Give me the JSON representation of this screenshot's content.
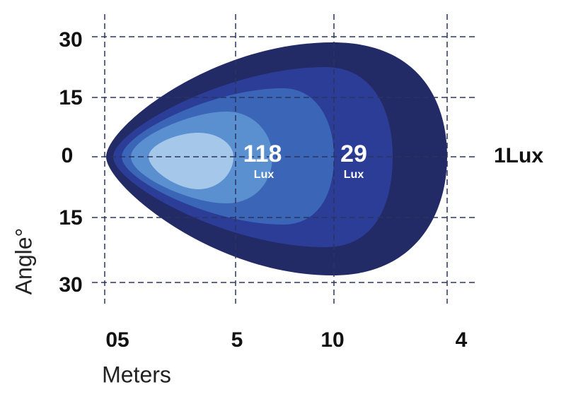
{
  "y_labels": [
    "30",
    "15",
    "0",
    "15",
    "30"
  ],
  "x_labels": [
    "05",
    "5",
    "10",
    "4"
  ],
  "x_axis_title": "Meters",
  "y_axis_title": "Angle°",
  "zones": [
    {
      "value": "118",
      "unit": "Lux"
    },
    {
      "value": "29",
      "unit": "Lux"
    }
  ],
  "edge_label": "1Lux"
}
